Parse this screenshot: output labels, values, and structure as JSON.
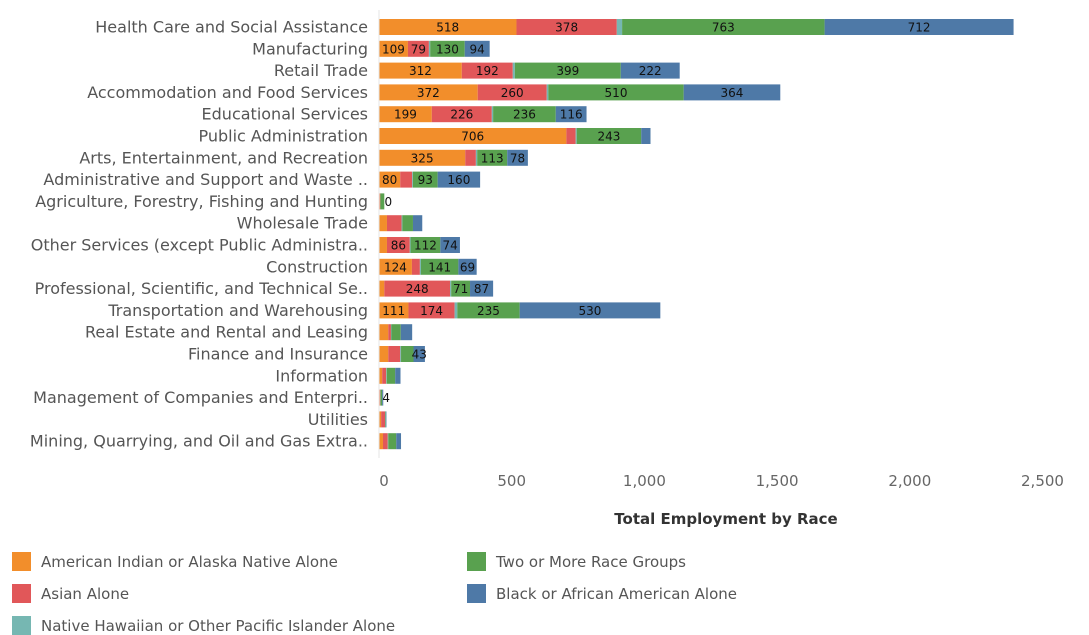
{
  "chart_data": {
    "type": "bar",
    "orientation": "horizontal",
    "stacked": true,
    "title": "",
    "xlabel": "Total Employment by Race",
    "ylabel": "",
    "xlim": [
      0,
      2500
    ],
    "x_ticks": [
      0,
      500,
      1000,
      1500,
      2000,
      2500
    ],
    "x_tick_labels": [
      "0",
      "500",
      "1,000",
      "1,500",
      "2,000",
      "2,500"
    ],
    "grid": false,
    "legend_position": "bottom",
    "categories": [
      "Health Care and Social Assistance",
      "Manufacturing",
      "Retail Trade",
      "Accommodation and Food Services",
      "Educational Services",
      "Public Administration",
      "Arts, Entertainment, and Recreation",
      "Administrative and Support and Waste ..",
      "Agriculture, Forestry, Fishing and Hunting",
      "Wholesale Trade",
      "Other Services (except Public Administra..",
      "Construction",
      "Professional, Scientific, and Technical Se..",
      "Transportation and Warehousing",
      "Real Estate and Rental and Leasing",
      "Finance and Insurance",
      "Information",
      "Management of Companies and Enterpri..",
      "Utilities",
      "Mining, Quarrying, and Oil and Gas Extra.."
    ],
    "series": [
      {
        "name": "American Indian or Alaska Native Alone",
        "color": "#F28E2B",
        "values": [
          518,
          109,
          312,
          372,
          199,
          706,
          325,
          80,
          3,
          30,
          30,
          124,
          20,
          111,
          35,
          35,
          12,
          3,
          8,
          15
        ],
        "labels": [
          "518",
          "109",
          "312",
          "372",
          "199",
          "706",
          "325",
          "80",
          "",
          "",
          "",
          "124",
          "",
          "111",
          "",
          "",
          "",
          "",
          "",
          ""
        ]
      },
      {
        "name": "Asian Alone",
        "color": "#E15759",
        "values": [
          378,
          79,
          192,
          260,
          226,
          35,
          40,
          45,
          2,
          55,
          86,
          30,
          248,
          174,
          10,
          45,
          15,
          2,
          15,
          18
        ],
        "labels": [
          "378",
          "79",
          "192",
          "260",
          "226",
          "",
          "",
          "",
          "",
          "",
          "86",
          "",
          "248",
          "174",
          "",
          "",
          "",
          "",
          "",
          ""
        ]
      },
      {
        "name": "Native Hawaiian or Other Pacific Islander Alone",
        "color": "#76B7B2",
        "values": [
          20,
          5,
          8,
          6,
          5,
          4,
          5,
          3,
          0,
          3,
          3,
          4,
          4,
          10,
          2,
          3,
          2,
          1,
          1,
          2
        ],
        "labels": [
          "",
          "",
          "",
          "",
          "",
          "",
          "",
          "",
          "",
          "",
          "",
          "",
          "",
          "",
          "",
          "",
          "",
          "",
          "",
          ""
        ]
      },
      {
        "name": "Two or More Race Groups",
        "color": "#59A14F",
        "values": [
          763,
          130,
          399,
          510,
          236,
          243,
          113,
          93,
          15,
          40,
          112,
          141,
          71,
          235,
          35,
          47,
          32,
          6,
          2,
          30
        ],
        "labels": [
          "763",
          "130",
          "399",
          "510",
          "236",
          "243",
          "113",
          "93",
          "",
          "",
          "112",
          "141",
          "71",
          "235",
          "",
          "",
          "",
          "",
          "",
          ""
        ]
      },
      {
        "name": "Black or African American Alone",
        "color": "#4E79A7",
        "values": [
          712,
          94,
          222,
          364,
          116,
          35,
          78,
          160,
          0,
          35,
          74,
          69,
          87,
          530,
          43,
          43,
          20,
          4,
          2,
          18
        ],
        "labels": [
          "712",
          "94",
          "222",
          "364",
          "116",
          "",
          "78",
          "160",
          "0",
          "",
          "74",
          "69",
          "87",
          "530",
          "",
          "43",
          "",
          "4",
          "",
          ""
        ]
      }
    ],
    "legend": [
      {
        "name": "American Indian or Alaska Native Alone",
        "color": "#F28E2B"
      },
      {
        "name": "Two or More Race Groups",
        "color": "#59A14F"
      },
      {
        "name": "Asian Alone",
        "color": "#E15759"
      },
      {
        "name": "Black or African American Alone",
        "color": "#4E79A7"
      },
      {
        "name": "Native Hawaiian or Other Pacific Islander Alone",
        "color": "#76B7B2"
      }
    ]
  }
}
